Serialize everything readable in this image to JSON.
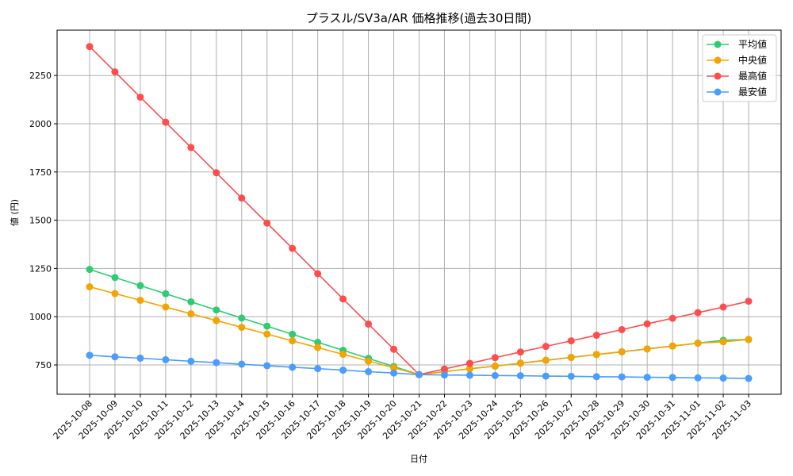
{
  "chart_data": {
    "type": "line",
    "title": "プラスル/SV3a/AR 価格推移(過去30日間)",
    "xlabel": "日付",
    "ylabel": "値 (円)",
    "ylim": [
      590,
      2485
    ],
    "yticks": [
      750,
      1000,
      1250,
      1500,
      1750,
      2000,
      2250
    ],
    "grid": true,
    "legend_position": "upper right",
    "categories": [
      "2025-10-08",
      "2025-10-09",
      "2025-10-10",
      "2025-10-11",
      "2025-10-12",
      "2025-10-13",
      "2025-10-14",
      "2025-10-15",
      "2025-10-16",
      "2025-10-17",
      "2025-10-18",
      "2025-10-19",
      "2025-10-20",
      "2025-10-21",
      "2025-10-22",
      "2025-10-23",
      "2025-10-24",
      "2025-10-25",
      "2025-10-26",
      "2025-10-27",
      "2025-10-28",
      "2025-10-29",
      "2025-10-30",
      "2025-10-31",
      "2025-11-01",
      "2025-11-02",
      "2025-11-03"
    ],
    "series": [
      {
        "name": "平均値",
        "color": "#2ecc71",
        "values": [
          1245,
          1203,
          1161,
          1119,
          1077,
          1035,
          993,
          951,
          909,
          867,
          826,
          784,
          742,
          700,
          715,
          730,
          744,
          759,
          774,
          789,
          804,
          818,
          833,
          848,
          863,
          878,
          882
        ]
      },
      {
        "name": "中央値",
        "color": "#f5a300",
        "values": [
          1155,
          1120,
          1085,
          1050,
          1015,
          980,
          945,
          910,
          875,
          840,
          805,
          770,
          735,
          700,
          715,
          730,
          744,
          759,
          774,
          789,
          804,
          818,
          833,
          848,
          863,
          870,
          882
        ]
      },
      {
        "name": "最高値",
        "color": "#ff4d4d",
        "values": [
          2400,
          2269,
          2138,
          2008,
          1877,
          1746,
          1615,
          1485,
          1354,
          1223,
          1092,
          962,
          831,
          700,
          729,
          758,
          788,
          817,
          846,
          875,
          904,
          933,
          963,
          992,
          1021,
          1050,
          1080
        ]
      },
      {
        "name": "最安値",
        "color": "#4a9cff",
        "values": [
          800,
          792,
          785,
          777,
          769,
          762,
          754,
          746,
          738,
          731,
          723,
          715,
          708,
          700,
          698,
          697,
          695,
          694,
          692,
          691,
          689,
          688,
          686,
          685,
          683,
          682,
          680
        ]
      }
    ]
  }
}
